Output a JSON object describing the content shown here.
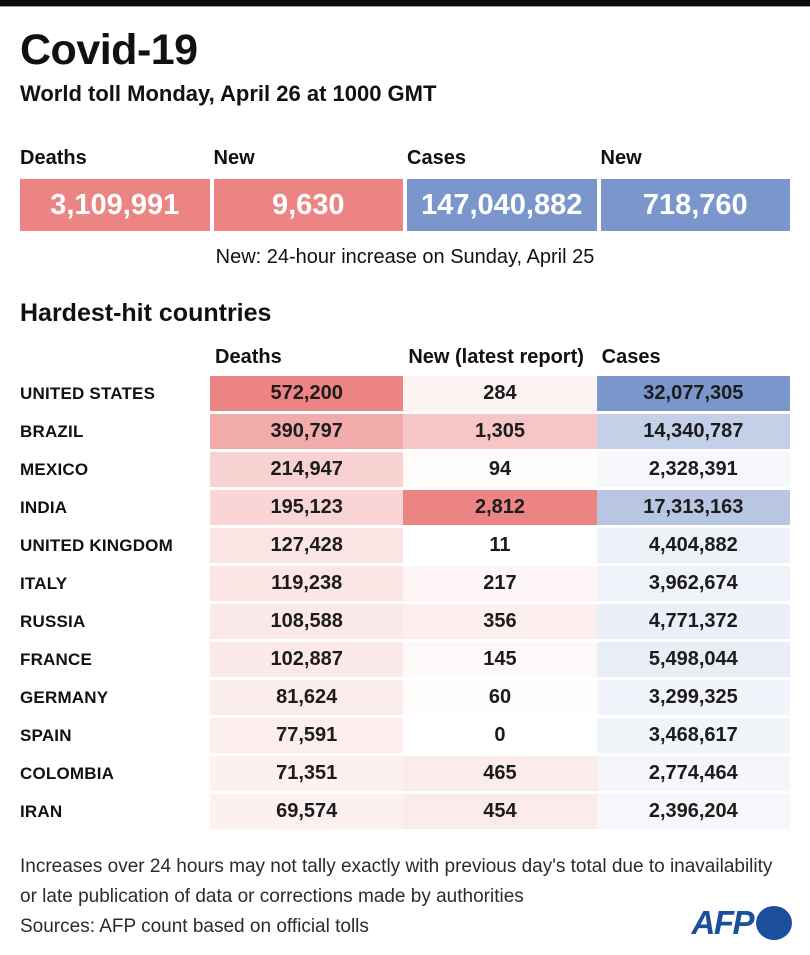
{
  "header": {
    "title": "Covid-19",
    "subtitle": "World toll Monday, April 26 at 1000 GMT"
  },
  "summary": {
    "boxes": [
      {
        "label": "Deaths",
        "value": "3,109,991",
        "color": "#EC8484"
      },
      {
        "label": "New",
        "value": "9,630",
        "color": "#EC8484"
      },
      {
        "label": "Cases",
        "value": "147,040,882",
        "color": "#7B96CC"
      },
      {
        "label": "New",
        "value": "718,760",
        "color": "#7B96CC"
      }
    ],
    "note": "New: 24-hour increase on Sunday, April 25"
  },
  "table": {
    "section_title": "Hardest-hit countries",
    "columns": [
      "Deaths",
      "New (latest report)",
      "Cases"
    ]
  },
  "footer": {
    "note_line1": "Increases over 24 hours may not tally exactly with previous day's total due to inavailability",
    "note_line2": "or late publication of data or corrections made by authorities",
    "sources": "Sources: AFP count based on official tolls",
    "logo_text": "AFP"
  },
  "colors": {
    "heat_red_max": "#EC8484",
    "heat_blue_max": "#7B96CC",
    "heat_min": "#FFFFFF",
    "logo_blue": "#1B4E9B"
  },
  "chart_data": {
    "type": "table",
    "title": "Covid-19",
    "subtitle": "World toll Monday, April 26 at 1000 GMT",
    "summary_totals": {
      "deaths": 3109991,
      "deaths_new": 9630,
      "cases": 147040882,
      "cases_new": 718760,
      "note": "New: 24-hour increase on Sunday, April 25"
    },
    "section_title": "Hardest-hit countries",
    "columns": [
      "Deaths",
      "New (latest report)",
      "Cases"
    ],
    "rows": [
      {
        "country": "UNITED STATES",
        "deaths": 572200,
        "new": 284,
        "cases": 32077305
      },
      {
        "country": "BRAZIL",
        "deaths": 390797,
        "new": 1305,
        "cases": 14340787
      },
      {
        "country": "MEXICO",
        "deaths": 214947,
        "new": 94,
        "cases": 2328391
      },
      {
        "country": "INDIA",
        "deaths": 195123,
        "new": 2812,
        "cases": 17313163
      },
      {
        "country": "UNITED KINGDOM",
        "deaths": 127428,
        "new": 11,
        "cases": 4404882
      },
      {
        "country": "ITALY",
        "deaths": 119238,
        "new": 217,
        "cases": 3962674
      },
      {
        "country": "RUSSIA",
        "deaths": 108588,
        "new": 356,
        "cases": 4771372
      },
      {
        "country": "FRANCE",
        "deaths": 102887,
        "new": 145,
        "cases": 5498044
      },
      {
        "country": "GERMANY",
        "deaths": 81624,
        "new": 60,
        "cases": 3299325
      },
      {
        "country": "SPAIN",
        "deaths": 77591,
        "new": 0,
        "cases": 3468617
      },
      {
        "country": "COLOMBIA",
        "deaths": 71351,
        "new": 465,
        "cases": 2774464
      },
      {
        "country": "IRAN",
        "deaths": 69574,
        "new": 454,
        "cases": 2396204
      }
    ],
    "heat_scale": {
      "red_max": "#EC8484",
      "blue_max": "#7B96CC",
      "min": "#FFFFFF"
    },
    "layout": {
      "heat_columns": {
        "deaths": "red",
        "new": "red",
        "cases": "blue"
      }
    }
  }
}
